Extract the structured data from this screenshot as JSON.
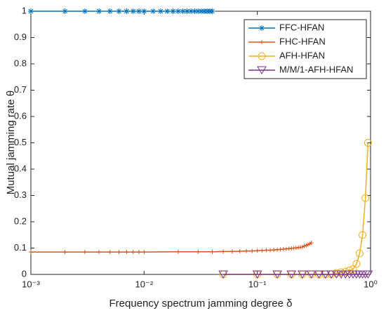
{
  "chart_data": {
    "type": "line",
    "xlabel": "Frequency spectrum jamming degree δ",
    "ylabel": "Mutual jamming rate θ",
    "xscale": "log",
    "xlim": [
      0.001,
      1
    ],
    "xticks": [
      {
        "value": 0.001,
        "label": "10⁻³"
      },
      {
        "value": 0.01,
        "label": "10⁻²"
      },
      {
        "value": 0.1,
        "label": "10⁻¹"
      },
      {
        "value": 1,
        "label": "10⁰"
      }
    ],
    "ylim": [
      0,
      1
    ],
    "yticks": [
      0,
      0.1,
      0.2,
      0.3,
      0.4,
      0.5,
      0.6,
      0.7,
      0.8,
      0.9,
      1
    ],
    "legend": "upper right",
    "series": [
      {
        "name": "FFC-HFAN",
        "color": "#0072bd",
        "marker": "asterisk",
        "x": [
          0.001,
          0.002,
          0.003,
          0.004,
          0.005,
          0.006,
          0.007,
          0.008,
          0.009,
          0.01,
          0.012,
          0.014,
          0.016,
          0.018,
          0.02,
          0.022,
          0.024,
          0.026,
          0.028,
          0.03,
          0.032,
          0.034,
          0.036,
          0.038,
          0.04
        ],
        "values": [
          1,
          1,
          1,
          1,
          1,
          1,
          1,
          1,
          1,
          1,
          1,
          1,
          1,
          1,
          1,
          1,
          1,
          1,
          1,
          1,
          1,
          1,
          1,
          1,
          1
        ]
      },
      {
        "name": "FHC-HFAN",
        "color": "#d95319",
        "marker": "plus",
        "x": [
          0.001,
          0.002,
          0.003,
          0.004,
          0.005,
          0.006,
          0.007,
          0.008,
          0.009,
          0.01,
          0.02,
          0.03,
          0.04,
          0.05,
          0.06,
          0.07,
          0.08,
          0.09,
          0.1,
          0.11,
          0.12,
          0.13,
          0.14,
          0.15,
          0.16,
          0.17,
          0.18,
          0.19,
          0.2,
          0.21,
          0.22,
          0.23,
          0.24,
          0.25,
          0.26,
          0.27,
          0.28,
          0.29,
          0.3
        ],
        "values": [
          0.085,
          0.085,
          0.085,
          0.085,
          0.085,
          0.085,
          0.085,
          0.085,
          0.085,
          0.085,
          0.086,
          0.086,
          0.086,
          0.087,
          0.087,
          0.088,
          0.089,
          0.089,
          0.09,
          0.091,
          0.092,
          0.092,
          0.093,
          0.094,
          0.095,
          0.096,
          0.097,
          0.098,
          0.099,
          0.1,
          0.101,
          0.102,
          0.103,
          0.104,
          0.108,
          0.11,
          0.113,
          0.116,
          0.12
        ]
      },
      {
        "name": "AFH-HFAN",
        "color": "#edb120",
        "marker": "circle",
        "x": [
          0.05,
          0.1,
          0.15,
          0.2,
          0.25,
          0.3,
          0.35,
          0.4,
          0.45,
          0.5,
          0.55,
          0.6,
          0.65,
          0.7,
          0.75,
          0.8,
          0.85,
          0.9,
          0.95
        ],
        "values": [
          0,
          0,
          0,
          0,
          0,
          0,
          0,
          0,
          0,
          0.005,
          0.008,
          0.01,
          0.015,
          0.02,
          0.04,
          0.08,
          0.15,
          0.29,
          0.5
        ]
      },
      {
        "name": "M/M/1-AFH-HFAN",
        "color": "#7e2f8e",
        "marker": "triangle",
        "x": [
          0.05,
          0.1,
          0.15,
          0.2,
          0.25,
          0.3,
          0.35,
          0.4,
          0.45,
          0.5,
          0.55,
          0.6,
          0.65,
          0.7,
          0.75,
          0.8,
          0.85,
          0.9,
          0.95
        ],
        "values": [
          0,
          0,
          0,
          0,
          0,
          0,
          0,
          0,
          0,
          0,
          0,
          0,
          0,
          0,
          0,
          0,
          0,
          0,
          0
        ]
      }
    ]
  }
}
